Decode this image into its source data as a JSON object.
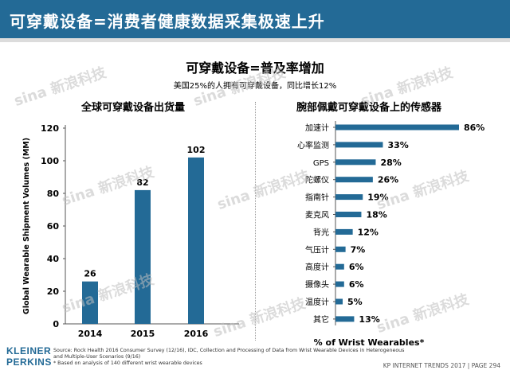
{
  "header": {
    "title": "可穿戴设备=消费者健康数据采集极速上升"
  },
  "slide": {
    "title": "可穿戴设备=普及率增加",
    "subtitle": "美国25%的人拥有可穿戴设备，同比增长12%"
  },
  "watermark": {
    "label": "sina 新浪科技"
  },
  "colors": {
    "header": "#236a96",
    "bar": "#236a96"
  },
  "chart_data": [
    {
      "type": "bar",
      "title": "全球可穿戴设备出货量",
      "ylabel": "Global Wearable Shipment Volumes (MM)",
      "xlabel": "",
      "categories": [
        "2014",
        "2015",
        "2016"
      ],
      "values": [
        26,
        82,
        102
      ],
      "ylim": [
        0,
        120
      ],
      "yticks": [
        "0",
        "20",
        "40",
        "60",
        "80",
        "100",
        "120"
      ],
      "value_labels": [
        "26",
        "82",
        "102"
      ]
    },
    {
      "type": "bar",
      "orientation": "horizontal",
      "title": "腕部佩戴可穿戴设备上的传感器",
      "xlabel": "% of Wrist Wearables*",
      "categories": [
        "加速计",
        "心率监测",
        "GPS",
        "陀螺仪",
        "指南针",
        "麦克风",
        "背光",
        "气压计",
        "高度计",
        "摄像头",
        "温度计",
        "其它"
      ],
      "values": [
        86,
        33,
        28,
        26,
        19,
        18,
        12,
        7,
        6,
        6,
        5,
        13
      ],
      "value_labels": [
        "86%",
        "33%",
        "28%",
        "26%",
        "19%",
        "18%",
        "12%",
        "7%",
        "6%",
        "6%",
        "5%",
        "13%"
      ],
      "xlim": [
        0,
        100
      ]
    }
  ],
  "footer": {
    "source_line1": "Source: Rock Health 2016 Consumer Survey (12/16), IDC, Collection and Processing of Data from Wrist Wearable Devices in Heterogeneous",
    "source_line2": "and Multiple-User Scenarios (9/16)",
    "source_line3": "* Based on analysis of 140 different wrist wearable devices",
    "logo_line1": "KLEINER",
    "logo_line2": "PERKINS",
    "page": "KP INTERNET TRENDS 2017  |  PAGE 294"
  }
}
